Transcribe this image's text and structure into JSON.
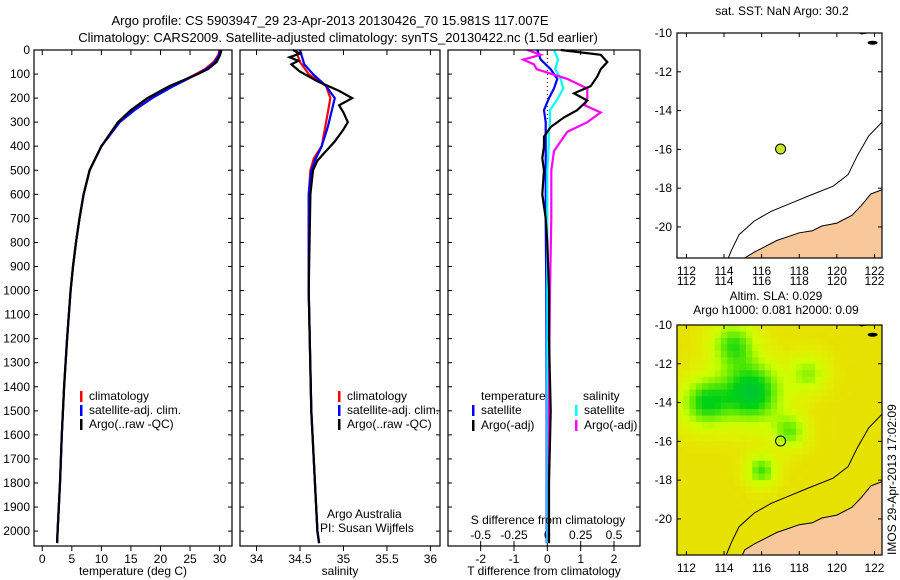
{
  "header": {
    "line1": "Argo profile: CS 5903947_29 23-Apr-2013 20130426_70 15.981S 117.007E",
    "line2": "Climatology: CARS2009. Satellite-adjusted climatology: synTS_20130422.nc (1.5d earlier)"
  },
  "colors": {
    "climatology": "#ff0000",
    "satellite": "#0000ff",
    "argo": "#000000",
    "sal_satellite": "#00ffff",
    "sal_argo": "#ff00ff",
    "land": "#f9c89a",
    "float_marker": "#c8e628"
  },
  "footer_stamp": "IMOS 29-Apr-2013 17:02:09",
  "chart_data": [
    {
      "type": "line",
      "id": "temperature",
      "xlabel": "temperature (deg C)",
      "ylabel": "pressure",
      "xlim": [
        -1.4,
        32.1
      ],
      "ylim": [
        2062,
        0
      ],
      "xticks": [
        "0",
        "5",
        "10",
        "15",
        "20",
        "25",
        "30"
      ],
      "yticks": [
        "0",
        "100",
        "200",
        "300",
        "400",
        "500",
        "600",
        "700",
        "800",
        "900",
        "1000",
        "1100",
        "1200",
        "1300",
        "1400",
        "1500",
        "1600",
        "1700",
        "1800",
        "1900",
        "2000"
      ],
      "legend": [
        "climatology",
        "satellite-adj. clim.",
        "Argo(..raw -QC)"
      ],
      "series": [
        {
          "name": "climatology",
          "p": [
            0,
            20,
            50,
            80,
            100,
            150,
            200,
            250,
            300,
            400,
            500,
            600,
            700,
            800,
            900,
            1000,
            1200,
            1400,
            1600,
            1800,
            2000,
            2050
          ],
          "v": [
            30,
            29.8,
            29,
            27.5,
            26,
            22,
            18.5,
            15.5,
            13,
            10,
            8,
            7,
            6.3,
            5.7,
            5.2,
            4.8,
            4.2,
            3.7,
            3.3,
            3.0,
            2.6,
            2.5
          ]
        },
        {
          "name": "satellite-adj. clim.",
          "p": [
            0,
            20,
            50,
            80,
            100,
            150,
            200,
            250,
            300,
            400,
            500,
            600,
            700,
            800,
            900,
            1000,
            1200,
            1400,
            1600,
            1800,
            2000,
            2050
          ],
          "v": [
            30.1,
            29.9,
            29.2,
            27.7,
            26.2,
            22.2,
            18.6,
            15.6,
            13.1,
            10,
            8,
            7,
            6.3,
            5.7,
            5.2,
            4.8,
            4.2,
            3.7,
            3.3,
            3.0,
            2.6,
            2.5
          ]
        },
        {
          "name": "Argo(..raw -QC)",
          "p": [
            0,
            20,
            50,
            80,
            100,
            150,
            200,
            250,
            300,
            400,
            500,
            600,
            700,
            800,
            900,
            1000,
            1200,
            1400,
            1600,
            1800,
            2000,
            2050
          ],
          "v": [
            30.3,
            30.1,
            29.5,
            28,
            26.3,
            21.5,
            17.8,
            15,
            12.8,
            10,
            8,
            7,
            6.3,
            5.7,
            5.2,
            4.8,
            4.2,
            3.7,
            3.3,
            3.0,
            2.6,
            2.5
          ]
        }
      ]
    },
    {
      "type": "line",
      "id": "salinity",
      "xlabel": "salinity",
      "xlim": [
        33.81,
        36.11
      ],
      "ylim": [
        2062,
        0
      ],
      "xticks": [
        "34",
        "34.5",
        "35",
        "35.5",
        "36"
      ],
      "legend": [
        "climatology",
        "satellite-adj. clim.",
        "Argo(..raw -QC)"
      ],
      "annotation": [
        "Argo Australia",
        "PI: Susan Wijffels"
      ],
      "series": [
        {
          "name": "climatology",
          "p": [
            0,
            50,
            100,
            150,
            200,
            300,
            400,
            450,
            500,
            600,
            1000,
            1500,
            2000,
            2050
          ],
          "v": [
            34.45,
            34.5,
            34.6,
            34.8,
            34.85,
            34.8,
            34.75,
            34.66,
            34.62,
            34.6,
            34.6,
            34.63,
            34.7,
            34.72
          ]
        },
        {
          "name": "satellite-adj. clim.",
          "p": [
            0,
            60,
            100,
            150,
            200,
            260,
            320,
            400,
            460,
            500,
            600,
            1000,
            1500,
            2000,
            2050
          ],
          "v": [
            34.5,
            34.55,
            34.65,
            34.8,
            34.9,
            34.86,
            34.82,
            34.75,
            34.67,
            34.63,
            34.6,
            34.6,
            34.63,
            34.7,
            34.72
          ]
        },
        {
          "name": "Argo(..raw -QC)",
          "p": [
            0,
            15,
            30,
            45,
            60,
            90,
            130,
            170,
            200,
            230,
            260,
            300,
            330,
            380,
            420,
            460,
            500,
            600,
            1000,
            1500,
            2000,
            2050
          ],
          "v": [
            34.42,
            34.5,
            34.38,
            34.48,
            34.4,
            34.5,
            34.7,
            34.95,
            35.1,
            34.95,
            35.0,
            35.05,
            35.0,
            34.9,
            34.8,
            34.7,
            34.65,
            34.62,
            34.6,
            34.63,
            34.7,
            34.72
          ]
        }
      ]
    },
    {
      "type": "line",
      "id": "difference",
      "xlabel": "T difference from climatology",
      "x2label": "S difference from climatology",
      "xlim": [
        -2.98,
        2.78
      ],
      "x2lim": [
        -0.745,
        0.695
      ],
      "ylim": [
        2062,
        0
      ],
      "xticks": [
        "-2",
        "-1",
        "0",
        "1",
        "2"
      ],
      "x2ticks": [
        "-0.5",
        "-0.25",
        "0",
        "0.25",
        "0.5"
      ],
      "legend": {
        "temperature_header": "temperature",
        "salinity_header": "salinity",
        "t_satellite": "satellite",
        "t_argo": "Argo(-adj)",
        "s_satellite": "satellite",
        "s_argo": "Argo(-adj)"
      },
      "series": [
        {
          "name": "T satellite",
          "axis": "T",
          "p": [
            0,
            40,
            80,
            120,
            160,
            200,
            250,
            300,
            350,
            400,
            500,
            700,
            1000,
            1500,
            2000,
            2050
          ],
          "v": [
            -0.3,
            -0.2,
            0.1,
            0.3,
            0.2,
            0.05,
            -0.1,
            -0.05,
            -0.05,
            -0.05,
            -0.05,
            -0.05,
            -0.03,
            -0.02,
            -0.02,
            -0.02
          ]
        },
        {
          "name": "S satellite",
          "axis": "S",
          "p": [
            0,
            40,
            80,
            120,
            160,
            200,
            250,
            300,
            350,
            400,
            500,
            700,
            1000,
            1500,
            2000,
            2050
          ],
          "v": [
            0.05,
            0.08,
            0.06,
            0.1,
            0.12,
            0.08,
            0.02,
            0.02,
            0.01,
            0.01,
            0.0,
            0.0,
            0.0,
            0.0,
            0.0,
            0.0
          ]
        },
        {
          "name": "S Argo(-adj)",
          "axis": "S",
          "p": [
            0,
            20,
            40,
            60,
            80,
            120,
            160,
            200,
            230,
            260,
            300,
            340,
            380,
            420,
            500,
            700,
            1000,
            1500,
            2000,
            2050
          ],
          "v": [
            -0.15,
            -0.05,
            -0.18,
            -0.1,
            -0.08,
            0.15,
            0.3,
            0.3,
            0.28,
            0.4,
            0.3,
            0.15,
            0.1,
            0.05,
            0.03,
            0.03,
            0.02,
            0.01,
            0.01,
            0.01
          ]
        },
        {
          "name": "T Argo(-adj)",
          "axis": "T",
          "p": [
            0,
            20,
            50,
            80,
            110,
            150,
            180,
            210,
            250,
            280,
            320,
            360,
            400,
            450,
            500,
            600,
            700,
            800,
            1000,
            1200,
            1500,
            1800,
            2000,
            2050
          ],
          "v": [
            0.4,
            1.6,
            1.8,
            1.6,
            1.5,
            1.3,
            0.8,
            1.2,
            0.9,
            0.5,
            0.1,
            -0.1,
            -0.1,
            -0.15,
            -0.1,
            -0.15,
            -0.05,
            0.0,
            0.05,
            0.05,
            0.1,
            0.05,
            0.05,
            0.05
          ]
        }
      ]
    },
    {
      "type": "map",
      "id": "sst_map",
      "title": "sat. SST: NaN Argo: 30.2",
      "lon_range": [
        111.5,
        122.4
      ],
      "lat_range": [
        -21.6,
        -10
      ],
      "xticks": [
        "112",
        "114",
        "116",
        "118",
        "120",
        "122"
      ],
      "yticks": [
        "-10",
        "-12",
        "-14",
        "-16",
        "-18",
        "-20"
      ],
      "float": {
        "lon": 117.007,
        "lat": -15.981
      }
    },
    {
      "type": "heatmap",
      "id": "sla_map",
      "title": "Altim. SLA: 0.029",
      "subtitle": "Argo h1000: 0.081 h2000: 0.09",
      "lon_range": [
        111.5,
        122.4
      ],
      "lat_range": [
        -21.86,
        -10
      ],
      "xticks": [
        "112",
        "114",
        "116",
        "118",
        "120",
        "122"
      ],
      "yticks": [
        "-10",
        "-12",
        "-14",
        "-16",
        "-18",
        "-20"
      ],
      "float": {
        "lon": 117.007,
        "lat": -15.981
      }
    }
  ]
}
